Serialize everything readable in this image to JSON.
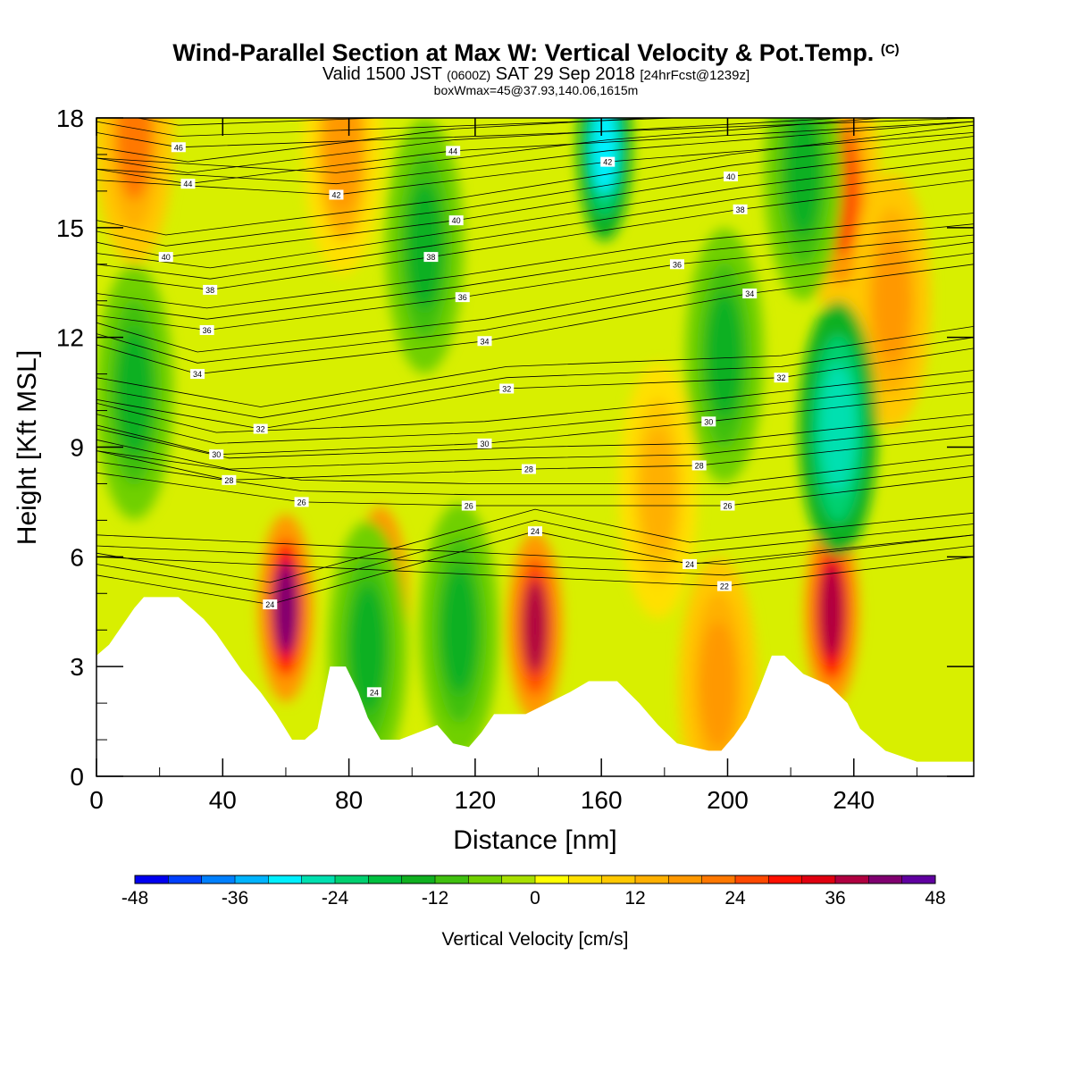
{
  "header": {
    "title": "Wind-Parallel Section at Max W: Vertical Velocity & Pot.Temp.",
    "title_mark": "(C)",
    "valid": "Valid 1500 JST",
    "valid_utc": "(0600Z)",
    "valid_date": "SAT 29 Sep 2018",
    "forecast": "[24hrFcst@1239z]",
    "box": "boxWmax=45@37.93,140.06,1615m"
  },
  "chart_data": {
    "type": "heatmap",
    "xlabel": "Distance [nm]",
    "ylabel": "Height [Kft MSL]",
    "xlim": [
      0,
      278
    ],
    "ylim": [
      0,
      18
    ],
    "x_ticks": [
      0,
      40,
      80,
      120,
      160,
      200,
      240
    ],
    "y_ticks": [
      0,
      3,
      6,
      9,
      12,
      15,
      18
    ],
    "terrain_kft": [
      [
        0,
        3.3
      ],
      [
        4,
        3.6
      ],
      [
        8,
        4.1
      ],
      [
        12,
        4.6
      ],
      [
        15,
        4.9
      ],
      [
        26,
        4.9
      ],
      [
        30,
        4.6
      ],
      [
        34,
        4.3
      ],
      [
        38,
        3.9
      ],
      [
        42,
        3.4
      ],
      [
        46,
        2.9
      ],
      [
        52,
        2.3
      ],
      [
        57,
        1.7
      ],
      [
        62,
        1.0
      ],
      [
        66,
        1.0
      ],
      [
        70,
        1.3
      ],
      [
        74,
        3.0
      ],
      [
        79,
        3.0
      ],
      [
        83,
        2.3
      ],
      [
        86,
        1.6
      ],
      [
        90,
        1.0
      ],
      [
        96,
        1.0
      ],
      [
        102,
        1.2
      ],
      [
        108,
        1.4
      ],
      [
        113,
        0.9
      ],
      [
        118,
        0.8
      ],
      [
        122,
        1.2
      ],
      [
        126,
        1.7
      ],
      [
        136,
        1.7
      ],
      [
        150,
        2.3
      ],
      [
        156,
        2.6
      ],
      [
        165,
        2.6
      ],
      [
        172,
        2.0
      ],
      [
        178,
        1.4
      ],
      [
        184,
        0.9
      ],
      [
        194,
        0.7
      ],
      [
        198,
        0.7
      ],
      [
        202,
        1.1
      ],
      [
        206,
        1.6
      ],
      [
        210,
        2.4
      ],
      [
        214,
        3.3
      ],
      [
        218,
        3.3
      ],
      [
        224,
        2.8
      ],
      [
        232,
        2.5
      ],
      [
        238,
        2.0
      ],
      [
        242,
        1.3
      ],
      [
        250,
        0.7
      ],
      [
        260,
        0.4
      ],
      [
        278,
        0.4
      ]
    ],
    "vertical_velocity_cells_cms": [
      {
        "x": 60,
        "z": 4.6,
        "w": 40
      },
      {
        "x": 90,
        "z": 4.8,
        "w": 38
      },
      {
        "x": 139,
        "z": 4.1,
        "w": 36
      },
      {
        "x": 233,
        "z": 4.5,
        "w": 38
      },
      {
        "x": 236,
        "z": 16.0,
        "w": 26
      },
      {
        "x": 252,
        "z": 13.0,
        "w": 18
      },
      {
        "x": 12,
        "z": 17.5,
        "w": 20
      },
      {
        "x": 78,
        "z": 17.2,
        "w": 16
      },
      {
        "x": 197,
        "z": 2.5,
        "w": 18
      },
      {
        "x": 178,
        "z": 7.8,
        "w": 14
      },
      {
        "x": 161,
        "z": 17.2,
        "w": -30
      },
      {
        "x": 235,
        "z": 9.5,
        "w": -28
      },
      {
        "x": 12,
        "z": 10.5,
        "w": -16
      },
      {
        "x": 104,
        "z": 14.5,
        "w": -14
      },
      {
        "x": 115,
        "z": 4.0,
        "w": -14
      },
      {
        "x": 199,
        "z": 11.5,
        "w": -14
      },
      {
        "x": 86,
        "z": 3.5,
        "w": -16
      },
      {
        "x": 224,
        "z": 16.5,
        "w": -14
      }
    ],
    "potential_temperature_levels_c": [
      22,
      24,
      26,
      28,
      30,
      32,
      34,
      36,
      38,
      40,
      42,
      44,
      46
    ],
    "contour_labels": [
      {
        "x": 26,
        "z": 17.2,
        "text": "46"
      },
      {
        "x": 29,
        "z": 16.2,
        "text": "44"
      },
      {
        "x": 113,
        "z": 17.1,
        "text": "44"
      },
      {
        "x": 76,
        "z": 15.9,
        "text": "42"
      },
      {
        "x": 162,
        "z": 16.8,
        "text": "42"
      },
      {
        "x": 22,
        "z": 14.2,
        "text": "40"
      },
      {
        "x": 114,
        "z": 15.2,
        "text": "40"
      },
      {
        "x": 201,
        "z": 16.4,
        "text": "40"
      },
      {
        "x": 36,
        "z": 13.3,
        "text": "38"
      },
      {
        "x": 106,
        "z": 14.2,
        "text": "38"
      },
      {
        "x": 204,
        "z": 15.5,
        "text": "38"
      },
      {
        "x": 35,
        "z": 12.2,
        "text": "36"
      },
      {
        "x": 116,
        "z": 13.1,
        "text": "36"
      },
      {
        "x": 184,
        "z": 14.0,
        "text": "36"
      },
      {
        "x": 32,
        "z": 11.0,
        "text": "34"
      },
      {
        "x": 123,
        "z": 11.9,
        "text": "34"
      },
      {
        "x": 207,
        "z": 13.2,
        "text": "34"
      },
      {
        "x": 52,
        "z": 9.5,
        "text": "32"
      },
      {
        "x": 130,
        "z": 10.6,
        "text": "32"
      },
      {
        "x": 217,
        "z": 10.9,
        "text": "32"
      },
      {
        "x": 38,
        "z": 8.8,
        "text": "30"
      },
      {
        "x": 123,
        "z": 9.1,
        "text": "30"
      },
      {
        "x": 194,
        "z": 9.7,
        "text": "30"
      },
      {
        "x": 42,
        "z": 8.1,
        "text": "28"
      },
      {
        "x": 137,
        "z": 8.4,
        "text": "28"
      },
      {
        "x": 191,
        "z": 8.5,
        "text": "28"
      },
      {
        "x": 65,
        "z": 7.5,
        "text": "26"
      },
      {
        "x": 118,
        "z": 7.4,
        "text": "26"
      },
      {
        "x": 200,
        "z": 7.4,
        "text": "26"
      },
      {
        "x": 139,
        "z": 6.7,
        "text": "24"
      },
      {
        "x": 188,
        "z": 5.8,
        "text": "24"
      },
      {
        "x": 55,
        "z": 4.7,
        "text": "24"
      },
      {
        "x": 88,
        "z": 2.3,
        "text": "24"
      },
      {
        "x": 199,
        "z": 5.2,
        "text": "22"
      }
    ],
    "colorbar": {
      "label": "Vertical Velocity [cm/s]",
      "min": -48,
      "max": 48,
      "step": 4,
      "tick_labels": [
        "-48",
        "-36",
        "-24",
        "-12",
        "0",
        "12",
        "24",
        "36",
        "48"
      ],
      "colors": [
        "#0000f0",
        "#0040ff",
        "#0080ff",
        "#00b4ff",
        "#00f0ff",
        "#00e0b0",
        "#00d070",
        "#00c040",
        "#10b020",
        "#40c010",
        "#70d000",
        "#a8e000",
        "#ffff00",
        "#ffe000",
        "#ffc800",
        "#ffb000",
        "#ff9800",
        "#ff7800",
        "#ff4800",
        "#ff1000",
        "#e00010",
        "#b00040",
        "#800070",
        "#6000a0"
      ]
    }
  }
}
